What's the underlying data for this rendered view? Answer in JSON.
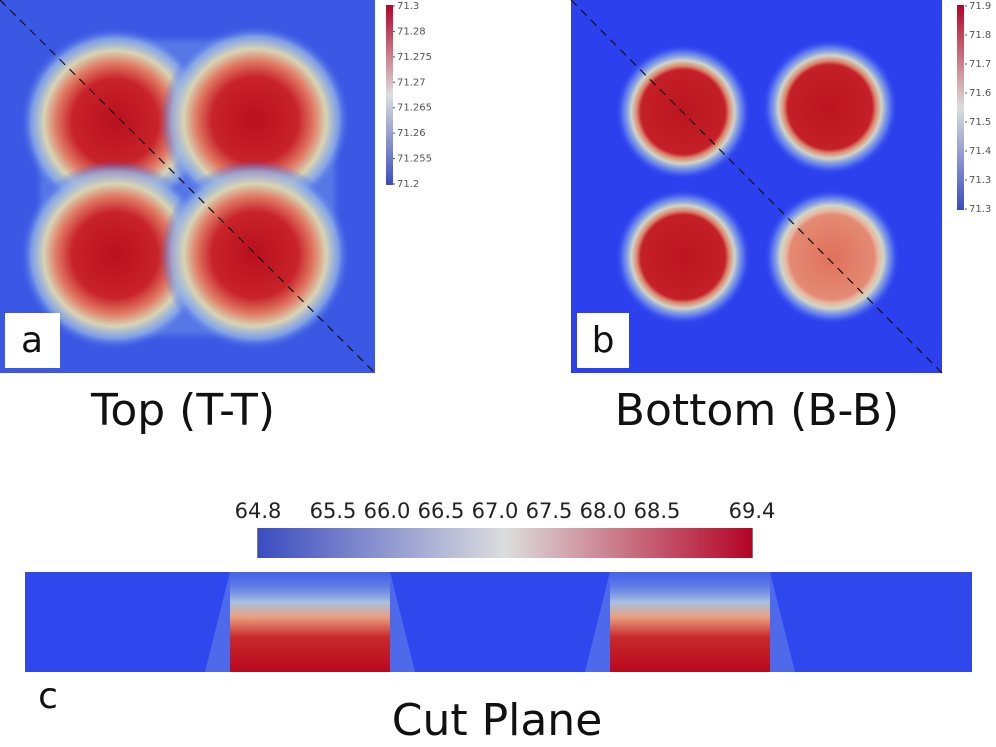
{
  "panels": [
    {
      "label": "a",
      "caption": "Top (T-T)",
      "colorbar_labels": [
        "71.3",
        "71.28",
        "71.275",
        "71.27",
        "71.265",
        "71.26",
        "71.255",
        "71.2"
      ]
    },
    {
      "label": "b",
      "caption": "Bottom (B-B)",
      "colorbar_labels": [
        "71.9",
        "71.8",
        "71.7",
        "71.6",
        "71.5",
        "71.4",
        "71.3",
        "71.3"
      ]
    },
    {
      "label": "c",
      "caption": "Cut Plane",
      "colorbar_labels": [
        "64.8",
        "65.5",
        "66.0",
        "66.5",
        "67.0",
        "67.5",
        "68.0",
        "68.5",
        "69.4"
      ]
    }
  ]
}
